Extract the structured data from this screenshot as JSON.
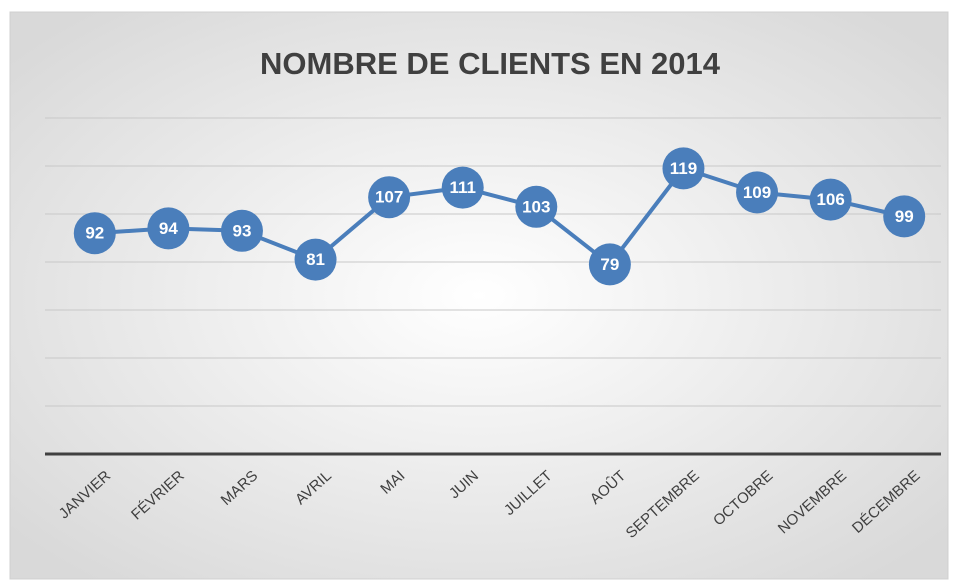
{
  "chart_data": {
    "type": "line",
    "title": "NOMBRE DE CLIENTS EN  2014",
    "categories": [
      "JANVIER",
      "FÉVRIER",
      "MARS",
      "AVRIL",
      "MAI",
      "JUIN",
      "JUILLET",
      "AOÛT",
      "SEPTEMBRE",
      "OCTOBRE",
      "NOVEMBRE",
      "DÉCEMBRE"
    ],
    "values": [
      92,
      94,
      93,
      81,
      107,
      111,
      103,
      79,
      119,
      109,
      106,
      99
    ],
    "color": "#4a7ebb",
    "ylim": [
      0,
      140
    ],
    "yticks": [
      0,
      20,
      40,
      60,
      80,
      100,
      120,
      140
    ],
    "grid": true
  }
}
